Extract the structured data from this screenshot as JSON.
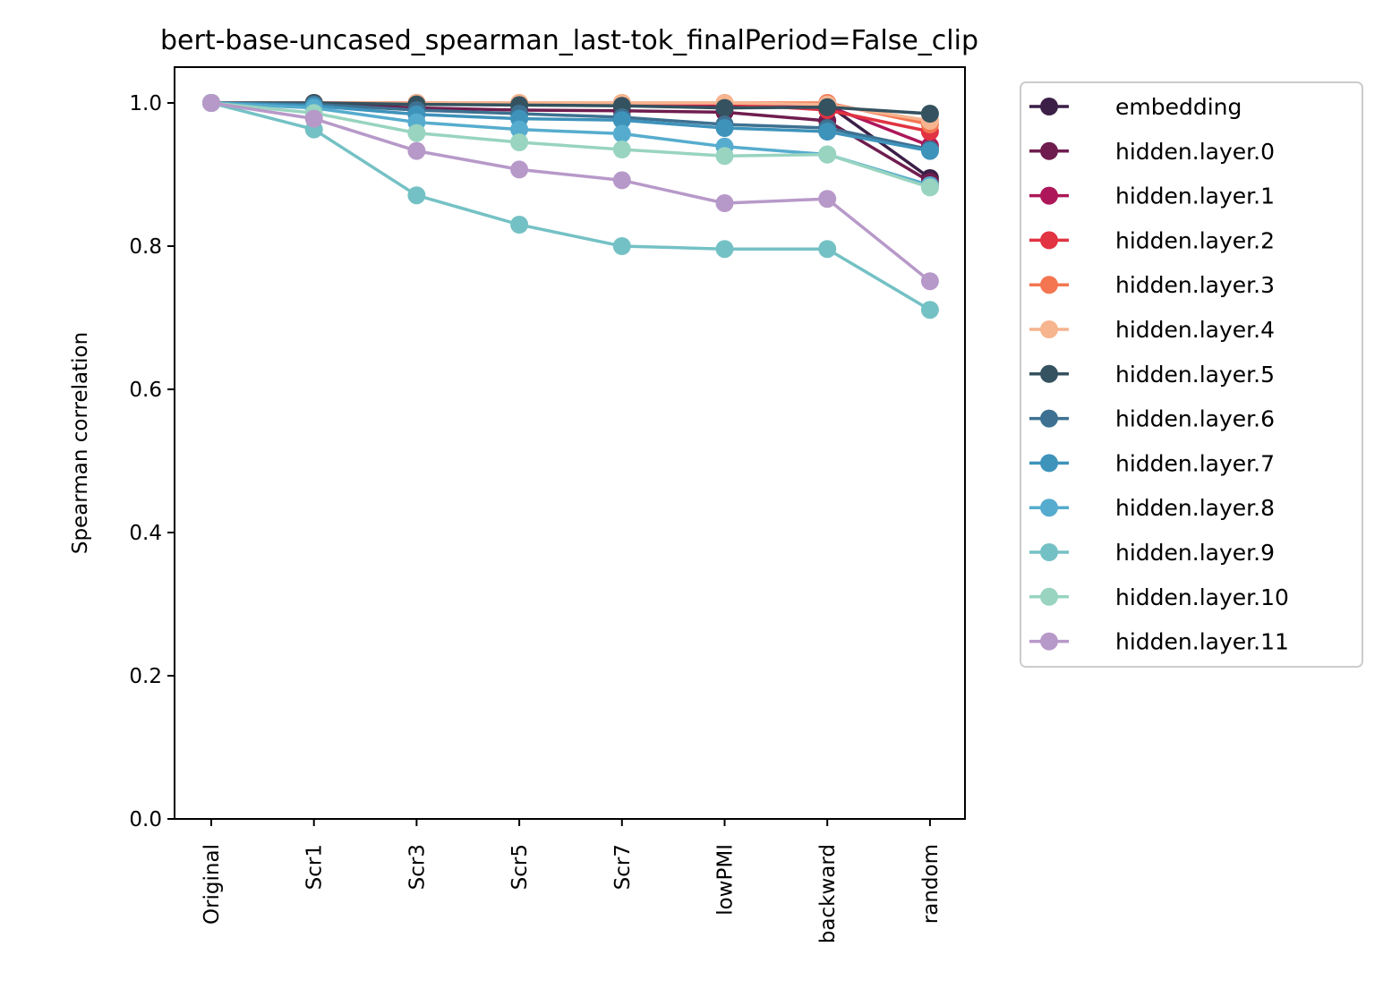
{
  "chart_data": {
    "type": "line",
    "title": "bert-base-uncased_spearman_last-tok_finalPeriod=False_clip",
    "xlabel": "",
    "ylabel": "Spearman correlation",
    "ylim": [
      0.0,
      1.05
    ],
    "yticks": [
      "0.0",
      "0.2",
      "0.4",
      "0.6",
      "0.8",
      "1.0"
    ],
    "categories": [
      "Original",
      "Scr1",
      "Scr3",
      "Scr5",
      "Scr7",
      "lowPMI",
      "backward",
      "random"
    ],
    "grid": false,
    "legend_position": "outside-right",
    "series": [
      {
        "name": "embedding",
        "color": "#3b1f47",
        "values": [
          1.0,
          1.0,
          0.998,
          0.998,
          0.997,
          0.996,
          0.998,
          0.895
        ]
      },
      {
        "name": "hidden.layer.0",
        "color": "#6f1d4f",
        "values": [
          1.0,
          0.999,
          0.993,
          0.99,
          0.989,
          0.987,
          0.975,
          0.89
        ]
      },
      {
        "name": "hidden.layer.1",
        "color": "#ad1759",
        "values": [
          1.0,
          1.0,
          0.999,
          0.999,
          0.998,
          0.998,
          0.996,
          0.94
        ]
      },
      {
        "name": "hidden.layer.2",
        "color": "#e13342",
        "values": [
          1.0,
          1.0,
          1.0,
          0.999,
          0.999,
          0.999,
          0.99,
          0.96
        ]
      },
      {
        "name": "hidden.layer.3",
        "color": "#f37651",
        "values": [
          1.0,
          1.0,
          1.0,
          1.0,
          1.0,
          1.0,
          1.0,
          0.97
        ]
      },
      {
        "name": "hidden.layer.4",
        "color": "#f6b48f",
        "values": [
          1.0,
          1.0,
          1.0,
          1.0,
          1.0,
          1.0,
          0.998,
          0.975
        ]
      },
      {
        "name": "hidden.layer.5",
        "color": "#34525f",
        "values": [
          1.0,
          1.0,
          0.998,
          0.997,
          0.996,
          0.993,
          0.994,
          0.985
        ]
      },
      {
        "name": "hidden.layer.6",
        "color": "#3e7191",
        "values": [
          1.0,
          0.998,
          0.99,
          0.985,
          0.98,
          0.97,
          0.965,
          0.935
        ]
      },
      {
        "name": "hidden.layer.7",
        "color": "#3e93bb",
        "values": [
          1.0,
          0.996,
          0.984,
          0.978,
          0.976,
          0.965,
          0.96,
          0.933
        ]
      },
      {
        "name": "hidden.layer.8",
        "color": "#56acce",
        "values": [
          1.0,
          0.993,
          0.973,
          0.963,
          0.957,
          0.939,
          0.928,
          0.885
        ]
      },
      {
        "name": "hidden.layer.9",
        "color": "#74c1c5",
        "values": [
          1.0,
          0.963,
          0.871,
          0.83,
          0.8,
          0.796,
          0.796,
          0.711
        ]
      },
      {
        "name": "hidden.layer.10",
        "color": "#98d4c0",
        "values": [
          1.0,
          0.986,
          0.958,
          0.945,
          0.935,
          0.926,
          0.928,
          0.882
        ]
      },
      {
        "name": "hidden.layer.11",
        "color": "#b799c9",
        "values": [
          1.0,
          0.978,
          0.933,
          0.907,
          0.892,
          0.86,
          0.866,
          0.751
        ]
      }
    ]
  }
}
